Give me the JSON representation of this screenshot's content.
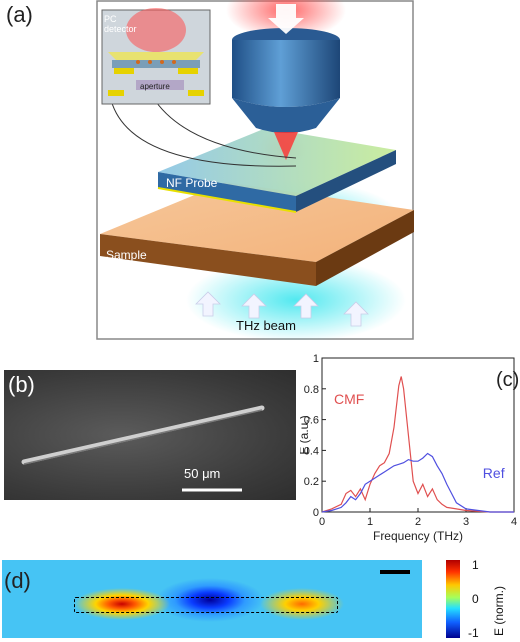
{
  "panels": {
    "a": {
      "label": "(a)",
      "inset_title": "PC\ndetector",
      "inset_aperture": "aperture",
      "probe": "NF Probe",
      "sample": "Sample",
      "beam": "THz beam"
    },
    "b": {
      "label": "(b)",
      "scale_bar": "50 μm"
    },
    "c": {
      "label": "(c)"
    },
    "d": {
      "label": "(d)",
      "colorbar_title": "E (norm.)",
      "colorbar_ticks": [
        "1",
        "0",
        "-1"
      ]
    }
  },
  "chart_data": {
    "type": "line",
    "title": "",
    "xlabel": "Frequency (THz)",
    "ylabel": "E (a.u.)",
    "xlim": [
      0,
      4
    ],
    "ylim": [
      0,
      1
    ],
    "xticks": [
      "0",
      "1",
      "2",
      "3",
      "4"
    ],
    "yticks": [
      "0",
      "0.2",
      "0.4",
      "0.6",
      "0.8",
      "1"
    ],
    "series": [
      {
        "name": "CMF",
        "color": "#e05050",
        "x": [
          0,
          0.2,
          0.4,
          0.5,
          0.6,
          0.7,
          0.8,
          0.9,
          1.0,
          1.1,
          1.2,
          1.3,
          1.4,
          1.5,
          1.6,
          1.65,
          1.7,
          1.8,
          1.9,
          2.0,
          2.1,
          2.2,
          2.3,
          2.4,
          2.5,
          2.6,
          2.8,
          3.0,
          3.5,
          4.0
        ],
        "y": [
          0.0,
          0.02,
          0.05,
          0.12,
          0.14,
          0.1,
          0.15,
          0.08,
          0.18,
          0.25,
          0.3,
          0.32,
          0.38,
          0.55,
          0.82,
          0.88,
          0.8,
          0.5,
          0.2,
          0.12,
          0.18,
          0.1,
          0.15,
          0.08,
          0.05,
          0.03,
          0.02,
          0.01,
          0.0,
          0.0
        ]
      },
      {
        "name": "Ref",
        "color": "#5050e0",
        "x": [
          0,
          0.2,
          0.4,
          0.5,
          0.6,
          0.7,
          0.8,
          0.9,
          1.0,
          1.1,
          1.2,
          1.3,
          1.4,
          1.5,
          1.6,
          1.7,
          1.8,
          1.9,
          2.0,
          2.1,
          2.2,
          2.3,
          2.4,
          2.5,
          2.6,
          2.7,
          2.8,
          3.0,
          3.5,
          4.0
        ],
        "y": [
          0.0,
          0.01,
          0.03,
          0.06,
          0.1,
          0.08,
          0.12,
          0.18,
          0.2,
          0.22,
          0.24,
          0.26,
          0.28,
          0.3,
          0.31,
          0.32,
          0.34,
          0.33,
          0.33,
          0.35,
          0.38,
          0.36,
          0.3,
          0.25,
          0.18,
          0.12,
          0.06,
          0.02,
          0.0,
          0.0
        ]
      }
    ]
  }
}
